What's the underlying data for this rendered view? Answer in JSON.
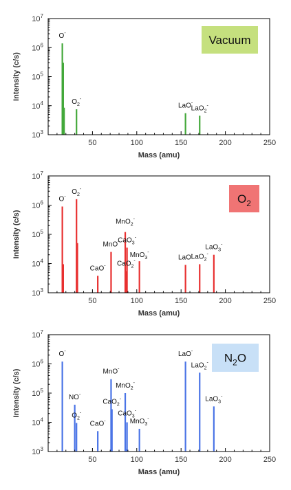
{
  "chart_data": [
    {
      "type": "bar",
      "condition": "Vacuum",
      "condition_color": "#c5e07e",
      "series_color": "#43a83a",
      "xlabel": "Mass (amu)",
      "ylabel": "Intensity (c/s)",
      "xlim": [
        0,
        250
      ],
      "ylim": [
        1000,
        10000000
      ],
      "yscale": "log",
      "x_ticks": [
        "50",
        "100",
        "150",
        "200",
        "250"
      ],
      "y_ticks": [
        "10^3",
        "10^4",
        "10^5",
        "10^6",
        "10^7"
      ],
      "peaks": [
        {
          "label": "O⁻",
          "mass": 16,
          "intensity": 1400000
        },
        {
          "label": "",
          "mass": 17,
          "intensity": 300000
        },
        {
          "label": "",
          "mass": 18,
          "intensity": 8500
        },
        {
          "label": "O₂⁻",
          "mass": 32,
          "intensity": 7500
        },
        {
          "label": "LaO⁻",
          "mass": 155,
          "intensity": 5500
        },
        {
          "label": "LaO₂⁻",
          "mass": 171,
          "intensity": 4500
        }
      ]
    },
    {
      "type": "bar",
      "condition": "O₂",
      "condition_color": "#f07474",
      "series_color": "#e83030",
      "xlabel": "Mass (amu)",
      "ylabel": "Intensity (c/s)",
      "xlim": [
        0,
        250
      ],
      "ylim": [
        1000,
        10000000
      ],
      "yscale": "log",
      "x_ticks": [
        "50",
        "100",
        "150",
        "200",
        "250"
      ],
      "y_ticks": [
        "10^3",
        "10^4",
        "10^5",
        "10^6",
        "10^7"
      ],
      "peaks": [
        {
          "label": "O⁻",
          "mass": 16,
          "intensity": 900000
        },
        {
          "label": "",
          "mass": 17,
          "intensity": 9500
        },
        {
          "label": "O₂⁻",
          "mass": 32,
          "intensity": 1600000
        },
        {
          "label": "",
          "mass": 33,
          "intensity": 50000
        },
        {
          "label": "CaO⁻",
          "mass": 56,
          "intensity": 3800
        },
        {
          "label": "MnO⁻",
          "mass": 71,
          "intensity": 25000
        },
        {
          "label": "MnO₂⁻",
          "mass": 87,
          "intensity": 120000
        },
        {
          "label": "CaO₂⁻",
          "mass": 88,
          "intensity": 5500
        },
        {
          "label": "CaO₃⁻",
          "mass": 89,
          "intensity": 35000
        },
        {
          "label": "MnO₃⁻",
          "mass": 103,
          "intensity": 12000
        },
        {
          "label": "LaO⁻",
          "mass": 155,
          "intensity": 9000
        },
        {
          "label": "LaO₂⁻",
          "mass": 171,
          "intensity": 9500
        },
        {
          "label": "LaO₃⁻",
          "mass": 187,
          "intensity": 20000
        }
      ]
    },
    {
      "type": "bar",
      "condition": "N₂O",
      "condition_color": "#c8e0f7",
      "series_color": "#4a74e6",
      "xlabel": "Mass (amu)",
      "ylabel": "Intensity (c/s)",
      "xlim": [
        0,
        250
      ],
      "ylim": [
        1000,
        10000000
      ],
      "yscale": "log",
      "x_ticks": [
        "50",
        "100",
        "150",
        "200",
        "250"
      ],
      "y_ticks": [
        "10^3",
        "10^4",
        "10^5",
        "10^6",
        "10^7"
      ],
      "peaks": [
        {
          "label": "O⁻",
          "mass": 16,
          "intensity": 1200000
        },
        {
          "label": "NO⁻",
          "mass": 30,
          "intensity": 40000
        },
        {
          "label": "O₂⁻",
          "mass": 32,
          "intensity": 9500
        },
        {
          "label": "CaO⁻",
          "mass": 56,
          "intensity": 5000
        },
        {
          "label": "MnO⁻",
          "mass": 71,
          "intensity": 300000
        },
        {
          "label": "CaO₂⁻",
          "mass": 72,
          "intensity": 28000
        },
        {
          "label": "MnO₂⁻",
          "mass": 87,
          "intensity": 100000
        },
        {
          "label": "",
          "mass": 88,
          "intensity": 1200
        },
        {
          "label": "CaO₃⁻",
          "mass": 89,
          "intensity": 10000
        },
        {
          "label": "MnO₃⁻",
          "mass": 103,
          "intensity": 6000
        },
        {
          "label": "LaO⁻",
          "mass": 155,
          "intensity": 1200000
        },
        {
          "label": "LaO₂⁻",
          "mass": 171,
          "intensity": 500000
        },
        {
          "label": "LaO₃⁻",
          "mass": 187,
          "intensity": 35000
        }
      ]
    }
  ]
}
